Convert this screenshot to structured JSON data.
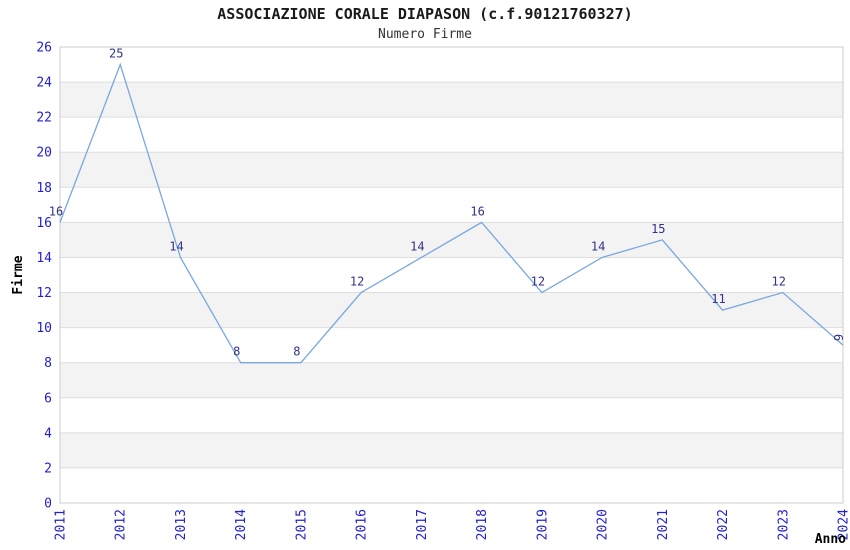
{
  "header": {
    "title": "ASSOCIAZIONE CORALE DIAPASON (c.f.90121760327)",
    "subtitle": "Numero Firme"
  },
  "chart_data": {
    "type": "line",
    "title": "ASSOCIAZIONE CORALE DIAPASON (c.f.90121760327)",
    "subtitle": "Numero Firme",
    "xlabel": "Anno",
    "ylabel": "Firme",
    "categories": [
      "2011",
      "2012",
      "2013",
      "2014",
      "2015",
      "2016",
      "2017",
      "2018",
      "2019",
      "2020",
      "2021",
      "2022",
      "2023",
      "2024"
    ],
    "series": [
      {
        "name": "Numero Firme",
        "values": [
          16,
          25,
          14,
          8,
          8,
          12,
          14,
          16,
          12,
          14,
          15,
          11,
          12,
          9
        ]
      }
    ],
    "ylim": [
      0,
      26
    ],
    "ytick_step": 2,
    "yticks": [
      0,
      2,
      4,
      6,
      8,
      10,
      12,
      14,
      16,
      18,
      20,
      22,
      24,
      26
    ],
    "grid": true,
    "alternating_bands": true,
    "legend": "none",
    "colors": {
      "line": "#7aa7e0",
      "tick_label": "#2222cc",
      "data_label": "#333388",
      "band": "#f3f3f3",
      "grid_line": "#dddddd",
      "border": "#cccccc",
      "axis_title": "#000000",
      "background": "#ffffff"
    }
  }
}
